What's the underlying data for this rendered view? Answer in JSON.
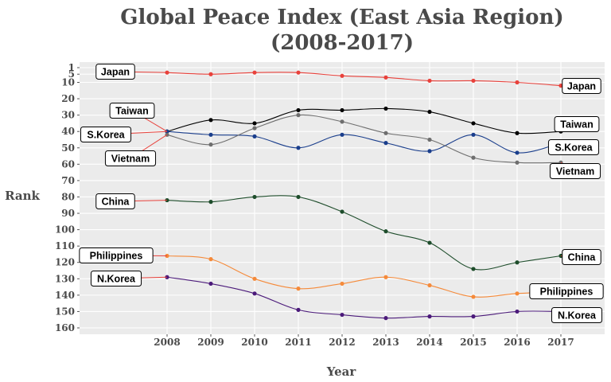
{
  "chart_data": {
    "type": "line",
    "title": "Global Peace Index (East Asia Region)",
    "subtitle": "(2008-2017)",
    "xlabel": "Year",
    "ylabel": "Rank",
    "x": [
      2008,
      2009,
      2010,
      2011,
      2012,
      2013,
      2014,
      2015,
      2016,
      2017
    ],
    "xlim": [
      2006,
      2018
    ],
    "ylim": [
      160,
      1
    ],
    "y_reversed": true,
    "y_ticks": [
      1,
      5,
      10,
      20,
      30,
      40,
      50,
      60,
      70,
      80,
      90,
      100,
      110,
      120,
      130,
      140,
      150,
      160
    ],
    "grid": true,
    "legend": "direct labels at line ends",
    "series": [
      {
        "name": "Japan",
        "color": "#e8413b",
        "values": [
          4,
          5,
          4,
          4,
          6,
          7,
          9,
          9,
          10,
          12
        ]
      },
      {
        "name": "Taiwan",
        "color": "#000000",
        "values": [
          40,
          33,
          35,
          27,
          27,
          26,
          28,
          35,
          41,
          40
        ]
      },
      {
        "name": "S.Korea",
        "color": "#1a3e8c",
        "values": [
          40,
          42,
          43,
          50,
          42,
          47,
          52,
          42,
          53,
          47
        ]
      },
      {
        "name": "Vietnam",
        "color": "#6e6e6e",
        "values": [
          42,
          48,
          38,
          30,
          34,
          41,
          45,
          56,
          59,
          59
        ]
      },
      {
        "name": "China",
        "color": "#1e4d2b",
        "values": [
          82,
          83,
          80,
          80,
          89,
          101,
          108,
          124,
          120,
          116
        ]
      },
      {
        "name": "Philippines",
        "color": "#f58a3a",
        "values": [
          116,
          118,
          130,
          136,
          133,
          129,
          134,
          141,
          139,
          138
        ]
      },
      {
        "name": "N.Korea",
        "color": "#4b1a7a",
        "values": [
          129,
          133,
          139,
          149,
          152,
          154,
          153,
          153,
          150,
          150
        ]
      }
    ]
  }
}
